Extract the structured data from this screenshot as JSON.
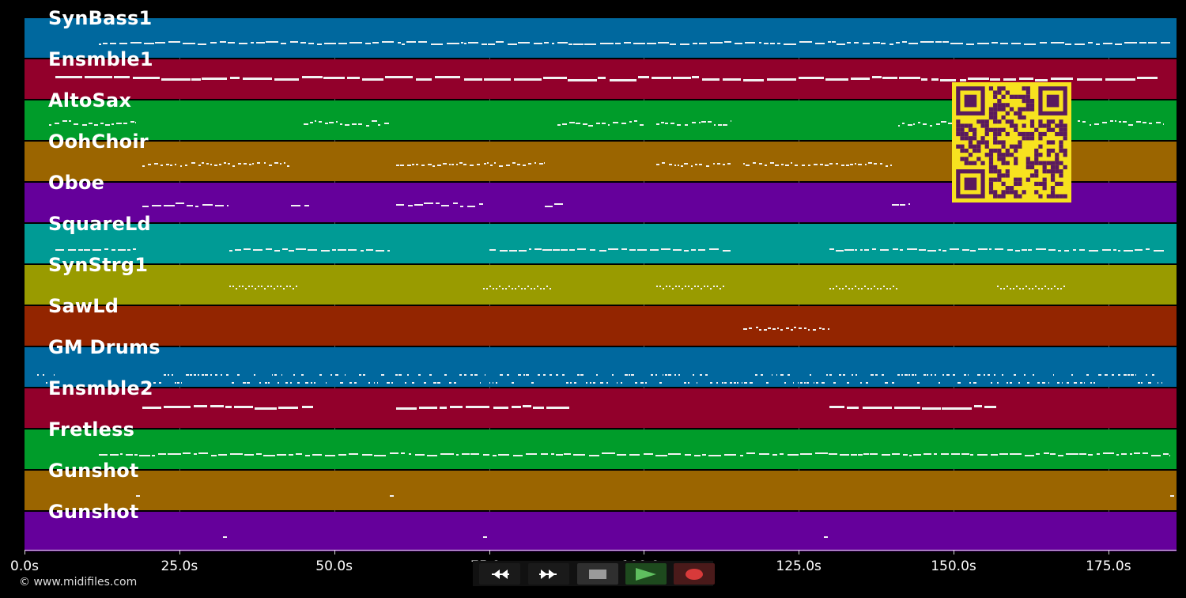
{
  "app": {
    "copyright": "© www.midifiles.com"
  },
  "tracks": [
    {
      "name": "SynBass1",
      "color": "#00689e",
      "pattern": "dense_line",
      "segments": [
        [
          12,
          185
        ]
      ]
    },
    {
      "name": "Ensmble1",
      "color": "#92002b",
      "pattern": "thick_line",
      "segments": [
        [
          5,
          183
        ]
      ]
    },
    {
      "name": "AltoSax",
      "color": "#009c2a",
      "pattern": "riff",
      "segments": [
        [
          4,
          18
        ],
        [
          45,
          59
        ],
        [
          86,
          100
        ],
        [
          102,
          114
        ],
        [
          141,
          155
        ],
        [
          170,
          184
        ]
      ]
    },
    {
      "name": "OohChoir",
      "color": "#9b6500",
      "pattern": "dotted",
      "segments": [
        [
          19,
          43
        ],
        [
          60,
          84
        ],
        [
          102,
          114
        ],
        [
          116,
          140
        ]
      ]
    },
    {
      "name": "Oboe",
      "color": "#65009b",
      "pattern": "melody",
      "segments": [
        [
          19,
          33
        ],
        [
          43,
          46
        ],
        [
          60,
          74
        ],
        [
          84,
          87
        ],
        [
          140,
          143
        ]
      ]
    },
    {
      "name": "SquareLd",
      "color": "#009b95",
      "pattern": "dashes",
      "segments": [
        [
          5,
          18
        ],
        [
          33,
          59
        ],
        [
          75,
          114
        ],
        [
          130,
          184
        ]
      ]
    },
    {
      "name": "SynStrg1",
      "color": "#999b00",
      "pattern": "wave",
      "segments": [
        [
          33,
          44
        ],
        [
          74,
          85
        ],
        [
          102,
          113
        ],
        [
          130,
          141
        ],
        [
          157,
          168
        ]
      ]
    },
    {
      "name": "SawLd",
      "color": "#932500",
      "pattern": "dotted",
      "segments": [
        [
          116,
          130
        ]
      ]
    },
    {
      "name": "GM Drums",
      "color": "#00689e",
      "pattern": "drums",
      "segments": [
        [
          2,
          5
        ],
        [
          19,
          184
        ]
      ]
    },
    {
      "name": "Ensmble2",
      "color": "#92002b",
      "pattern": "thick_line",
      "segments": [
        [
          19,
          47
        ],
        [
          60,
          88
        ],
        [
          130,
          157
        ]
      ]
    },
    {
      "name": "Fretless",
      "color": "#009c2a",
      "pattern": "dense_line",
      "segments": [
        [
          12,
          185
        ]
      ]
    },
    {
      "name": "Gunshot",
      "color": "#9b6500",
      "pattern": "ticks",
      "segments": [
        [
          18,
          19
        ],
        [
          59,
          60
        ],
        [
          185,
          186
        ]
      ]
    },
    {
      "name": "Gunshot",
      "color": "#65009b",
      "pattern": "ticks",
      "segments": [
        [
          32,
          33
        ],
        [
          74,
          75
        ],
        [
          129,
          130
        ]
      ]
    }
  ],
  "timeline": {
    "min": 0,
    "max": 186,
    "ticks": [
      {
        "value": 0,
        "label": "0.0s"
      },
      {
        "value": 25,
        "label": "25.0s"
      },
      {
        "value": 50,
        "label": "50.0s"
      },
      {
        "value": 75,
        "label": "75.0s"
      },
      {
        "value": 100,
        "label": "100.0s"
      },
      {
        "value": 125,
        "label": "125.0s"
      },
      {
        "value": 150,
        "label": "150.0s"
      },
      {
        "value": 175,
        "label": "175.0s"
      }
    ]
  },
  "transport": {
    "buttons": [
      {
        "name": "rewind-button",
        "icon": "rewind-icon",
        "bg": "#1a1a1a"
      },
      {
        "name": "fast-forward-button",
        "icon": "fast-forward-icon",
        "bg": "#1a1a1a"
      },
      {
        "name": "stop-button",
        "icon": "stop-icon",
        "bg": "#2f2f2f"
      },
      {
        "name": "play-button",
        "icon": "play-icon",
        "bg": "#1e4a1e"
      },
      {
        "name": "record-button",
        "icon": "record-icon",
        "bg": "#4a1a1a"
      }
    ]
  },
  "qr_code": {
    "icon": "qr-code-icon",
    "fg": "#5a1a5e",
    "bg": "#f7e21f"
  }
}
